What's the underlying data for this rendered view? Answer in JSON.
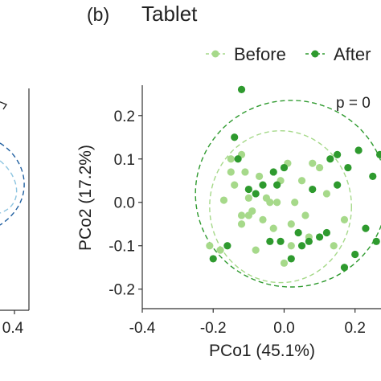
{
  "panel_left": {
    "tick_label": "0.4"
  },
  "chart_data": {
    "type": "scatter",
    "panel_label": "(b)",
    "title": "Tablet",
    "xlabel": "PCo1 (45.1%)",
    "ylabel": "PCo2 (17.2%)",
    "xlim": [
      -0.4,
      0.28
    ],
    "ylim": [
      -0.245,
      0.27
    ],
    "xticks": [
      "-0.4",
      "-0.2",
      "0.0",
      "0.2"
    ],
    "yticks": [
      "0.2",
      "0.1",
      "0.0",
      "-0.1",
      "-0.2"
    ],
    "xtick_values": [
      -0.4,
      -0.2,
      0.0,
      0.2
    ],
    "ytick_values": [
      0.2,
      0.1,
      0.0,
      -0.1,
      -0.2
    ],
    "grid": false,
    "legend_position": "top",
    "annotation": "p = 0",
    "series": [
      {
        "name": "Before",
        "color": "#a6d98a",
        "ellipse": {
          "cx": -0.01,
          "cy": -0.01,
          "rx": 0.2,
          "ry": 0.175
        },
        "points": [
          [
            -0.21,
            -0.1
          ],
          [
            -0.18,
            -0.11
          ],
          [
            -0.17,
            0.005
          ],
          [
            -0.15,
            0.07
          ],
          [
            -0.14,
            0.04
          ],
          [
            -0.12,
            -0.05
          ],
          [
            -0.12,
            0.11
          ],
          [
            -0.11,
            0.07
          ],
          [
            -0.1,
            0.01
          ],
          [
            -0.1,
            -0.03
          ],
          [
            -0.09,
            -0.02
          ],
          [
            -0.08,
            -0.11
          ],
          [
            -0.07,
            0.06
          ],
          [
            -0.06,
            -0.04
          ],
          [
            -0.05,
            0.01
          ],
          [
            -0.04,
            0.0
          ],
          [
            -0.03,
            -0.06
          ],
          [
            -0.02,
            0.0
          ],
          [
            -0.01,
            0.05
          ],
          [
            0.0,
            -0.14
          ],
          [
            0.01,
            0.09
          ],
          [
            0.02,
            -0.05
          ],
          [
            0.03,
            0.0
          ],
          [
            0.05,
            0.05
          ],
          [
            0.06,
            -0.03
          ],
          [
            0.07,
            -0.08
          ],
          [
            0.1,
            0.08
          ],
          [
            0.12,
            0.02
          ],
          [
            0.14,
            -0.1
          ],
          [
            0.17,
            -0.04
          ],
          [
            0.02,
            -0.1
          ],
          [
            -0.15,
            0.1
          ],
          [
            -0.12,
            -0.03
          ],
          [
            0.08,
            0.09
          ]
        ]
      },
      {
        "name": "After",
        "color": "#2e9a2e",
        "ellipse": {
          "cx": 0.02,
          "cy": 0.02,
          "rx": 0.27,
          "ry": 0.215
        },
        "points": [
          [
            -0.2,
            -0.13
          ],
          [
            -0.16,
            -0.1
          ],
          [
            -0.14,
            0.15
          ],
          [
            -0.13,
            0.1
          ],
          [
            -0.12,
            0.26
          ],
          [
            -0.1,
            0.03
          ],
          [
            -0.08,
            0.02
          ],
          [
            -0.06,
            0.04
          ],
          [
            -0.04,
            -0.09
          ],
          [
            -0.03,
            0.07
          ],
          [
            -0.02,
            0.04
          ],
          [
            -0.01,
            -0.09
          ],
          [
            0.0,
            0.08
          ],
          [
            0.02,
            -0.13
          ],
          [
            0.04,
            -0.07
          ],
          [
            0.05,
            -0.1
          ],
          [
            0.07,
            -0.09
          ],
          [
            0.08,
            0.03
          ],
          [
            0.1,
            -0.08
          ],
          [
            0.12,
            -0.07
          ],
          [
            0.13,
            0.1
          ],
          [
            0.15,
            0.11
          ],
          [
            0.15,
            0.04
          ],
          [
            0.18,
            0.08
          ],
          [
            0.2,
            -0.12
          ],
          [
            0.25,
            0.06
          ],
          [
            0.23,
            -0.06
          ],
          [
            0.26,
            -0.09
          ],
          [
            0.21,
            0.12
          ],
          [
            0.17,
            -0.15
          ],
          [
            0.27,
            0.11
          ]
        ]
      }
    ]
  }
}
